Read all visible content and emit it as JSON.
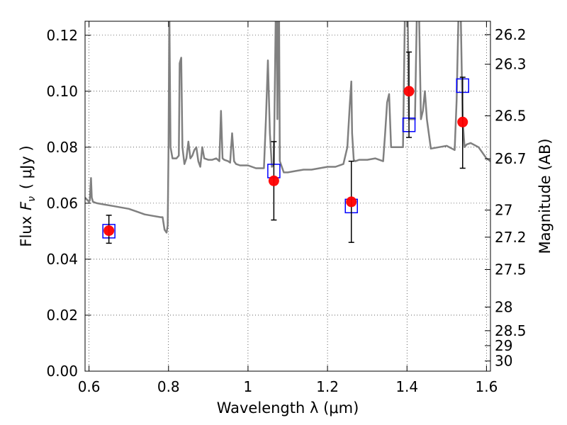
{
  "chart_data": {
    "type": "scatter",
    "title": "",
    "xlabel": "Wavelength  λ (μm)",
    "ylabel": "Flux  F_ν  ( μJy )",
    "ylabel_parts": {
      "flux": "Flux",
      "symbol": "F",
      "subscript": "ν",
      "unit": "( μJy )"
    },
    "ylabel_right": "Magnitude (AB)",
    "xlim": [
      0.59,
      1.61
    ],
    "ylim": [
      0.0,
      0.125
    ],
    "grid": true,
    "x_ticks": [
      {
        "value": 0.6,
        "label": "0.6"
      },
      {
        "value": 0.8,
        "label": "0.8"
      },
      {
        "value": 1.0,
        "label": "1"
      },
      {
        "value": 1.2,
        "label": "1.2"
      },
      {
        "value": 1.4,
        "label": "1.4"
      },
      {
        "value": 1.6,
        "label": "1.6"
      }
    ],
    "y_ticks": [
      {
        "value": 0.0,
        "label": "0.00"
      },
      {
        "value": 0.02,
        "label": "0.02"
      },
      {
        "value": 0.04,
        "label": "0.04"
      },
      {
        "value": 0.06,
        "label": "0.06"
      },
      {
        "value": 0.08,
        "label": "0.08"
      },
      {
        "value": 0.1,
        "label": "0.10"
      },
      {
        "value": 0.12,
        "label": "0.12"
      }
    ],
    "right_ticks": [
      {
        "mag": 26.2,
        "label": "26.2"
      },
      {
        "mag": 26.3,
        "label": "26.3"
      },
      {
        "mag": 26.5,
        "label": "26.5"
      },
      {
        "mag": 26.7,
        "label": "26.7"
      },
      {
        "mag": 27.0,
        "label": "27"
      },
      {
        "mag": 27.2,
        "label": "27.2"
      },
      {
        "mag": 27.5,
        "label": "27.5"
      },
      {
        "mag": 28.0,
        "label": "28"
      },
      {
        "mag": 28.5,
        "label": "28.5"
      },
      {
        "mag": 29.0,
        "label": "29"
      },
      {
        "mag": 30.0,
        "label": "30"
      }
    ],
    "series": [
      {
        "style": "line",
        "color": "#808080",
        "x": [
          0.59,
          0.6,
          0.602,
          0.605,
          0.607,
          0.61,
          0.62,
          0.64,
          0.66,
          0.68,
          0.7,
          0.72,
          0.74,
          0.76,
          0.78,
          0.785,
          0.79,
          0.795,
          0.798,
          0.8,
          0.802,
          0.805,
          0.81,
          0.815,
          0.82,
          0.826,
          0.828,
          0.832,
          0.835,
          0.84,
          0.845,
          0.85,
          0.855,
          0.86,
          0.865,
          0.87,
          0.875,
          0.88,
          0.885,
          0.89,
          0.9,
          0.91,
          0.92,
          0.928,
          0.932,
          0.936,
          0.94,
          0.95,
          0.955,
          0.96,
          0.965,
          0.97,
          0.98,
          1.0,
          1.02,
          1.04,
          1.045,
          1.05,
          1.055,
          1.06,
          1.065,
          1.07,
          1.072,
          1.074,
          1.076,
          1.078,
          1.08,
          1.09,
          1.1,
          1.12,
          1.14,
          1.16,
          1.18,
          1.2,
          1.22,
          1.24,
          1.25,
          1.256,
          1.26,
          1.262,
          1.266,
          1.27,
          1.28,
          1.3,
          1.32,
          1.34,
          1.345,
          1.35,
          1.355,
          1.36,
          1.38,
          1.39,
          1.395,
          1.4,
          1.402,
          1.405,
          1.41,
          1.42,
          1.425,
          1.43,
          1.435,
          1.44,
          1.445,
          1.45,
          1.46,
          1.48,
          1.5,
          1.52,
          1.525,
          1.53,
          1.535,
          1.54,
          1.545,
          1.55,
          1.56,
          1.58,
          1.6,
          1.61
        ],
        "y": [
          0.062,
          0.0605,
          0.061,
          0.069,
          0.062,
          0.0605,
          0.06,
          0.0595,
          0.059,
          0.0585,
          0.058,
          0.057,
          0.056,
          0.0555,
          0.055,
          0.055,
          0.0505,
          0.0495,
          0.052,
          0.08,
          0.13,
          0.08,
          0.076,
          0.076,
          0.076,
          0.077,
          0.11,
          0.112,
          0.08,
          0.074,
          0.076,
          0.082,
          0.076,
          0.077,
          0.079,
          0.08,
          0.075,
          0.073,
          0.08,
          0.076,
          0.0755,
          0.0755,
          0.076,
          0.075,
          0.093,
          0.076,
          0.0755,
          0.075,
          0.0745,
          0.085,
          0.075,
          0.074,
          0.0735,
          0.0735,
          0.0725,
          0.0725,
          0.09,
          0.111,
          0.085,
          0.073,
          0.074,
          0.13,
          0.13,
          0.09,
          0.13,
          0.13,
          0.075,
          0.071,
          0.071,
          0.0715,
          0.072,
          0.072,
          0.0725,
          0.073,
          0.073,
          0.074,
          0.08,
          0.095,
          0.1035,
          0.085,
          0.0755,
          0.075,
          0.0755,
          0.0755,
          0.076,
          0.075,
          0.085,
          0.096,
          0.099,
          0.08,
          0.08,
          0.08,
          0.13,
          0.13,
          0.125,
          0.09,
          0.09,
          0.09,
          0.13,
          0.13,
          0.09,
          0.093,
          0.1,
          0.09,
          0.0795,
          0.08,
          0.0805,
          0.079,
          0.097,
          0.13,
          0.13,
          0.09,
          0.08,
          0.081,
          0.0815,
          0.08,
          0.076,
          0.075
        ]
      },
      {
        "style": "marker",
        "marker": "square",
        "color": "#0000ff",
        "x": [
          0.65,
          1.065,
          1.26,
          1.405,
          1.54
        ],
        "y": [
          0.05,
          0.0715,
          0.059,
          0.088,
          0.102
        ]
      },
      {
        "style": "marker",
        "marker": "circle",
        "color": "#ff0000",
        "x": [
          0.65,
          1.065,
          1.26,
          1.405,
          1.54
        ],
        "y": [
          0.0502,
          0.068,
          0.0605,
          0.1,
          0.089
        ],
        "err_low": [
          0.0045,
          0.014,
          0.0145,
          0.0165,
          0.0165
        ],
        "err_high": [
          0.0055,
          0.014,
          0.0145,
          0.014,
          0.016
        ]
      }
    ]
  }
}
